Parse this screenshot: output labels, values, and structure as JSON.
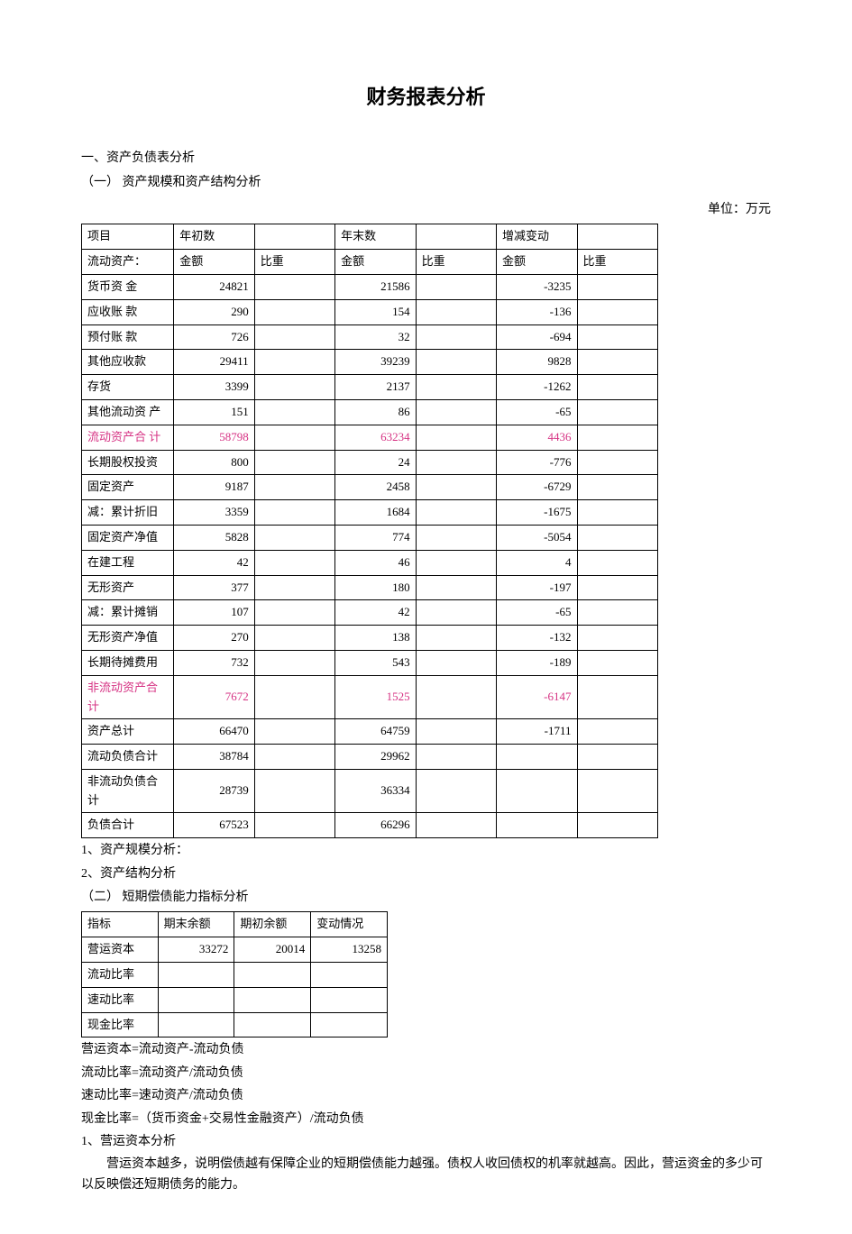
{
  "title": "财务报表分析",
  "section1": "一、资产负债表分析",
  "section1_1": "（一）  资产规模和资产结构分析",
  "unit": "单位：万元",
  "table1": {
    "header_top": [
      "项目",
      "年初数",
      "",
      "年末数",
      "",
      "增减变动",
      ""
    ],
    "header_sub": [
      "流动资产：",
      "金额",
      "比重",
      "金额",
      "比重",
      "金额",
      "比重"
    ],
    "rows": [
      {
        "label": "货币资 金",
        "a": "24821",
        "b": "21586",
        "c": "-3235",
        "hi": false
      },
      {
        "label": "应收账  款",
        "a": "290",
        "b": "154",
        "c": "-136",
        "hi": false
      },
      {
        "label": "预付账  款",
        "a": "726",
        "b": "32",
        "c": "-694",
        "hi": false
      },
      {
        "label": "其他应收款",
        "a": "29411",
        "b": "39239",
        "c": "9828",
        "hi": false
      },
      {
        "label": "存货",
        "a": "3399",
        "b": "2137",
        "c": "-1262",
        "hi": false
      },
      {
        "label": "其他流动资 产",
        "a": "151",
        "b": "86",
        "c": "-65",
        "hi": false
      },
      {
        "label": "流动资产合 计",
        "a": "58798",
        "b": "63234",
        "c": "4436",
        "hi": true
      },
      {
        "label": "长期股权投资",
        "a": "800",
        "b": "24",
        "c": "-776",
        "hi": false
      },
      {
        "label": "固定资产",
        "a": "9187",
        "b": "2458",
        "c": "-6729",
        "hi": false
      },
      {
        "label": "减：累计折旧",
        "a": "3359",
        "b": "1684",
        "c": "-1675",
        "hi": false
      },
      {
        "label": "固定资产净值",
        "a": "5828",
        "b": "774",
        "c": "-5054",
        "hi": false
      },
      {
        "label": "在建工程",
        "a": "42",
        "b": "46",
        "c": "4",
        "hi": false
      },
      {
        "label": "无形资产",
        "a": "377",
        "b": "180",
        "c": "-197",
        "hi": false
      },
      {
        "label": "减：累计摊销",
        "a": "107",
        "b": "42",
        "c": "-65",
        "hi": false
      },
      {
        "label": "无形资产净值",
        "a": "270",
        "b": "138",
        "c": "-132",
        "hi": false
      },
      {
        "label": "长期待摊费用",
        "a": "732",
        "b": "543",
        "c": "-189",
        "hi": false
      },
      {
        "label": "非流动资产合计",
        "a": "7672",
        "b": "1525",
        "c": "-6147",
        "hi": true
      },
      {
        "label": "资产总计",
        "a": "66470",
        "b": "64759",
        "c": "-1711",
        "hi": false
      },
      {
        "label": "流动负债合计",
        "a": "38784",
        "b": "29962",
        "c": "",
        "hi": false
      },
      {
        "label": "非流动负债合计",
        "a": "28739",
        "b": "36334",
        "c": "",
        "hi": false
      },
      {
        "label": "负债合计",
        "a": "67523",
        "b": "66296",
        "c": "",
        "hi": false
      }
    ],
    "highlight_color": "#d63384"
  },
  "analysis1": "1、资产规模分析：",
  "analysis2": "2、资产结构分析",
  "section1_2": "（二）  短期偿债能力指标分析",
  "table2": {
    "header": [
      "指标",
      "期末余额",
      "期初余额",
      "变动情况"
    ],
    "rows": [
      {
        "label": "营运资本",
        "a": "33272",
        "b": "20014",
        "c": "13258"
      },
      {
        "label": "流动比率",
        "a": "",
        "b": "",
        "c": ""
      },
      {
        "label": "速动比率",
        "a": "",
        "b": "",
        "c": ""
      },
      {
        "label": "现金比率",
        "a": "",
        "b": "",
        "c": ""
      }
    ]
  },
  "formulas": [
    "营运资本=流动资产-流动负债",
    "流动比率=流动资产/流动负债",
    "速动比率=速动资产/流动负债",
    "现金比率=（货币资金+交易性金融资产）/流动负债"
  ],
  "analysis3_h": "1、营运资本分析",
  "analysis3_body": "营运资本越多，说明偿债越有保障企业的短期偿债能力越强。债权人收回债权的机率就越高。因此，营运资金的多少可以反映偿还短期债务的能力。"
}
